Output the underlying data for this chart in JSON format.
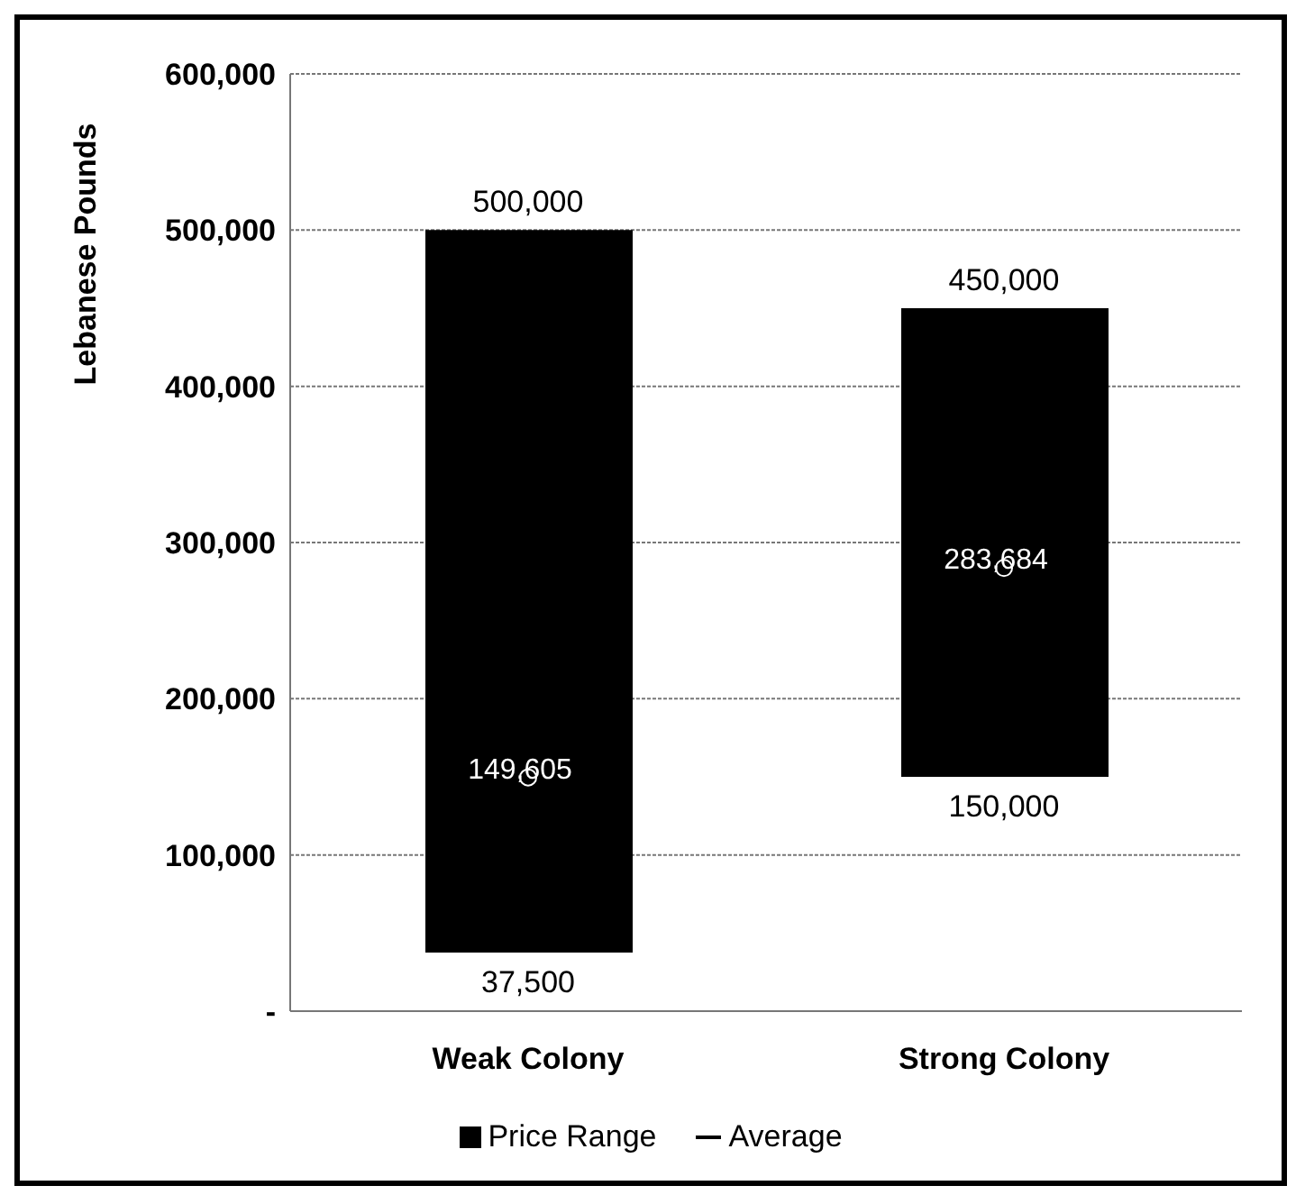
{
  "chart_data": {
    "type": "bar",
    "ylabel": "Lebanese Pounds",
    "categories": [
      "Weak Colony",
      "Strong Colony"
    ],
    "series": [
      {
        "name": "Price Range",
        "color": "#000000",
        "base": [
          37500,
          150000
        ],
        "values": [
          462500,
          300000
        ]
      },
      {
        "name": "Average",
        "type": "scatter",
        "color": "#000000",
        "values": [
          149605,
          283684
        ],
        "value_labels": [
          "149,605",
          "283,684"
        ]
      }
    ],
    "annotations": [
      {
        "text": "500,000",
        "x": "Weak Colony",
        "y": 500000
      },
      {
        "text": "37,500",
        "x": "Weak Colony",
        "y": 37500
      },
      {
        "text": "450,000",
        "x": "Strong Colony",
        "y": 450000
      },
      {
        "text": "150,000",
        "x": "Strong Colony",
        "y": 150000
      }
    ],
    "ylim": [
      0,
      600000
    ],
    "yticks": [
      {
        "value": 0,
        "label": "-"
      },
      {
        "value": 100000,
        "label": "100,000"
      },
      {
        "value": 200000,
        "label": "200,000"
      },
      {
        "value": 300000,
        "label": "300,000"
      },
      {
        "value": 400000,
        "label": "400,000"
      },
      {
        "value": 500000,
        "label": "500,000"
      },
      {
        "value": 600000,
        "label": "600,000"
      }
    ],
    "grid": "y",
    "legend": "bottom"
  }
}
